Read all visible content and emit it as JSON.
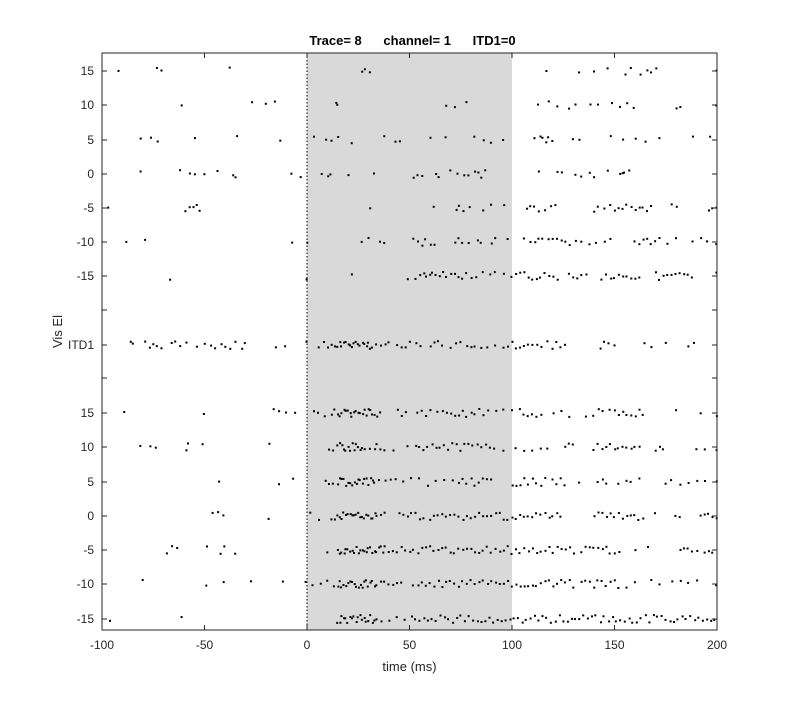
{
  "chart_data": {
    "type": "scatter",
    "title": "Trace= 8      channel= 1      ITD1=0",
    "xlabel": "time (ms)",
    "ylabel": "Vis El",
    "xlim": [
      -100,
      200
    ],
    "xticks": [
      -100,
      -50,
      0,
      50,
      100,
      150,
      200
    ],
    "shaded_region": {
      "x": [
        0,
        100
      ],
      "color": "#d9d9d9"
    },
    "stimulus_onset_line": {
      "x": 0,
      "style": "dotted"
    },
    "grid": false,
    "y_tick_labels_top": [
      "15",
      "10",
      "5",
      "0",
      "-5",
      "-10",
      "-15"
    ],
    "y_tick_label_middle": "ITD1",
    "y_tick_labels_bottom": [
      "15",
      "10",
      "5",
      "0",
      "-5",
      "-10",
      "-15"
    ],
    "rows": [
      {
        "group": "top",
        "label": "15",
        "spikes": [
          -92,
          -73,
          -71,
          -38,
          27,
          28,
          31,
          117,
          133,
          140,
          147,
          155,
          158,
          163,
          166,
          168,
          170,
          200
        ]
      },
      {
        "group": "top",
        "label": "10",
        "spikes": [
          -61,
          -27,
          -20,
          -16,
          14,
          15,
          68,
          72,
          78,
          113,
          118,
          122,
          128,
          131,
          138,
          142,
          149,
          153,
          156,
          159,
          180,
          182,
          200
        ]
      },
      {
        "group": "top",
        "label": "5",
        "spikes": [
          -81,
          -76,
          -73,
          -55,
          -34,
          -13,
          3,
          9,
          12,
          15,
          22,
          38,
          43,
          45,
          60,
          68,
          82,
          86,
          90,
          96,
          111,
          114,
          115,
          117,
          118,
          120,
          130,
          133,
          148,
          154,
          160,
          165,
          172,
          188,
          197
        ]
      },
      {
        "group": "top",
        "label": "0",
        "spikes": [
          -81,
          -62,
          -57,
          -55,
          -50,
          -44,
          -36,
          -35,
          -8,
          -3,
          7,
          10,
          11,
          20,
          33,
          52,
          54,
          56,
          63,
          64,
          70,
          73,
          77,
          79,
          82,
          84,
          85,
          87,
          113,
          122,
          124,
          131,
          134,
          138,
          140,
          147,
          153,
          154,
          155,
          157
        ]
      },
      {
        "group": "top",
        "label": "-5",
        "spikes": [
          -97,
          -59,
          -57,
          -55,
          -54,
          -52,
          31,
          62,
          73,
          74,
          76,
          79,
          86,
          90,
          96,
          107,
          109,
          111,
          113,
          116,
          119,
          121,
          140,
          142,
          145,
          148,
          150,
          152,
          154,
          156,
          158,
          160,
          162,
          164,
          166,
          168,
          178,
          180,
          196,
          198,
          200
        ]
      },
      {
        "group": "top",
        "label": "-10",
        "spikes": [
          -88,
          -79,
          -7,
          0,
          27,
          30,
          36,
          38,
          52,
          54,
          56,
          58,
          60,
          62,
          72,
          74,
          76,
          79,
          83,
          85,
          90,
          92,
          98,
          106,
          109,
          111,
          113,
          115,
          118,
          120,
          122,
          124,
          126,
          128,
          131,
          134,
          138,
          141,
          145,
          148,
          160,
          162,
          164,
          166,
          168,
          170,
          172,
          176,
          180,
          188,
          192,
          195,
          200
        ]
      },
      {
        "group": "top",
        "label": "-15",
        "spikes": [
          -67,
          0,
          22,
          49,
          53,
          55,
          57,
          58,
          60,
          61,
          63,
          65,
          66,
          68,
          70,
          72,
          74,
          76,
          78,
          80,
          83,
          86,
          89,
          92,
          96,
          100,
          102,
          104,
          106,
          108,
          110,
          112,
          114,
          116,
          118,
          120,
          122,
          128,
          130,
          132,
          134,
          136,
          144,
          146,
          148,
          150,
          152,
          154,
          156,
          158,
          160,
          162,
          170,
          172,
          174,
          176,
          178,
          180,
          182,
          184,
          186,
          188,
          200
        ]
      },
      {
        "group": "middle",
        "label": "ITD1",
        "spikes": [
          -86,
          -85,
          -79,
          -77,
          -75,
          -73,
          -71,
          -66,
          -64,
          -62,
          -59,
          -54,
          -50,
          -47,
          -45,
          -42,
          -40,
          -37,
          -35,
          -32,
          -30,
          -15,
          -11,
          0,
          6,
          8,
          10,
          12,
          14,
          15,
          16,
          17,
          18,
          19,
          20,
          21,
          22,
          23,
          24,
          25,
          26,
          27,
          28,
          29,
          30,
          31,
          32,
          34,
          36,
          38,
          40,
          44,
          46,
          48,
          50,
          53,
          55,
          60,
          62,
          64,
          66,
          70,
          73,
          75,
          78,
          80,
          82,
          85,
          88,
          92,
          96,
          98,
          100,
          102,
          104,
          106,
          108,
          110,
          112,
          114,
          117,
          120,
          122,
          124,
          126,
          143,
          145,
          147,
          150,
          165,
          168,
          175,
          186,
          189
        ]
      },
      {
        "group": "bottom",
        "label": "15",
        "spikes": [
          -89,
          -50,
          -16,
          -14,
          -10,
          -6,
          3,
          5,
          9,
          12,
          13,
          15,
          16,
          17,
          18,
          19,
          20,
          21,
          22,
          23,
          24,
          25,
          26,
          27,
          28,
          29,
          30,
          31,
          32,
          33,
          34,
          36,
          44,
          46,
          48,
          54,
          56,
          58,
          60,
          64,
          66,
          68,
          70,
          72,
          74,
          76,
          78,
          80,
          82,
          84,
          86,
          88,
          92,
          96,
          100,
          104,
          106,
          108,
          110,
          112,
          114,
          120,
          124,
          128,
          136,
          140,
          142,
          144,
          148,
          150,
          152,
          154,
          156,
          158,
          160,
          162,
          164,
          180,
          192,
          200
        ]
      },
      {
        "group": "bottom",
        "label": "10",
        "spikes": [
          -81,
          -76,
          -74,
          -59,
          -58,
          -51,
          -18,
          11,
          13,
          15,
          16,
          17,
          18,
          19,
          20,
          21,
          22,
          23,
          24,
          25,
          26,
          27,
          28,
          31,
          33,
          34,
          36,
          38,
          42,
          49,
          53,
          55,
          57,
          59,
          61,
          63,
          65,
          67,
          69,
          71,
          73,
          75,
          77,
          79,
          81,
          83,
          85,
          87,
          89,
          91,
          96,
          102,
          106,
          110,
          114,
          117,
          126,
          128,
          130,
          140,
          142,
          144,
          146,
          148,
          150,
          152,
          154,
          156,
          158,
          160,
          162,
          170,
          172,
          174,
          190,
          194,
          200
        ]
      },
      {
        "group": "bottom",
        "label": "5",
        "spikes": [
          -43,
          -14,
          -7,
          9,
          11,
          13,
          15,
          16,
          17,
          18,
          19,
          20,
          21,
          22,
          23,
          24,
          25,
          26,
          27,
          28,
          29,
          30,
          31,
          32,
          33,
          35,
          38,
          41,
          43,
          47,
          51,
          55,
          59,
          63,
          67,
          71,
          74,
          76,
          78,
          80,
          82,
          84,
          86,
          88,
          90,
          100,
          102,
          104,
          106,
          108,
          110,
          112,
          114,
          116,
          120,
          122,
          124,
          126,
          133,
          142,
          144,
          146,
          152,
          156,
          158,
          162,
          175,
          178,
          182,
          186,
          190,
          194,
          200
        ]
      },
      {
        "group": "bottom",
        "label": "0",
        "spikes": [
          -46,
          -43,
          -41,
          -19,
          2,
          6,
          12,
          14,
          15,
          16,
          17,
          18,
          19,
          20,
          21,
          22,
          23,
          24,
          25,
          26,
          27,
          28,
          29,
          30,
          31,
          32,
          33,
          34,
          36,
          38,
          45,
          47,
          49,
          51,
          53,
          55,
          57,
          60,
          62,
          64,
          66,
          68,
          70,
          72,
          74,
          76,
          78,
          80,
          82,
          84,
          86,
          88,
          90,
          92,
          94,
          96,
          98,
          100,
          102,
          104,
          106,
          108,
          110,
          112,
          114,
          116,
          118,
          120,
          122,
          124,
          140,
          142,
          144,
          146,
          148,
          150,
          152,
          154,
          156,
          158,
          160,
          162,
          164,
          170,
          180,
          182,
          192,
          194,
          196,
          198,
          200
        ]
      },
      {
        "group": "bottom",
        "label": "-5",
        "spikes": [
          -68,
          -66,
          -63,
          -49,
          -42,
          -40,
          -35,
          10,
          15,
          16,
          17,
          18,
          19,
          20,
          21,
          22,
          23,
          24,
          25,
          26,
          27,
          28,
          29,
          30,
          31,
          32,
          33,
          34,
          35,
          36,
          37,
          38,
          40,
          42,
          44,
          46,
          48,
          50,
          52,
          54,
          56,
          58,
          60,
          62,
          64,
          66,
          68,
          70,
          72,
          74,
          76,
          78,
          80,
          82,
          84,
          86,
          88,
          90,
          92,
          94,
          96,
          98,
          100,
          102,
          104,
          106,
          108,
          110,
          112,
          114,
          116,
          118,
          120,
          122,
          124,
          126,
          128,
          130,
          134,
          136,
          138,
          140,
          142,
          144,
          146,
          148,
          150,
          152,
          160,
          166,
          182,
          184,
          186,
          188,
          190,
          194,
          196,
          198
        ]
      },
      {
        "group": "bottom",
        "label": "-10",
        "spikes": [
          -80,
          -49,
          -41,
          -27,
          -12,
          -1,
          3,
          7,
          10,
          13,
          15,
          16,
          17,
          18,
          19,
          20,
          21,
          22,
          23,
          24,
          25,
          26,
          27,
          28,
          29,
          30,
          31,
          32,
          33,
          34,
          36,
          38,
          40,
          42,
          44,
          46,
          52,
          54,
          56,
          58,
          60,
          62,
          64,
          66,
          68,
          70,
          72,
          74,
          76,
          78,
          80,
          82,
          84,
          86,
          88,
          90,
          92,
          94,
          96,
          98,
          100,
          102,
          104,
          106,
          108,
          110,
          112,
          114,
          116,
          118,
          120,
          122,
          124,
          126,
          128,
          130,
          134,
          136,
          138,
          140,
          142,
          144,
          146,
          148,
          150,
          152,
          156,
          160,
          168,
          172,
          178,
          182,
          186,
          190,
          200
        ]
      },
      {
        "group": "bottom",
        "label": "-15",
        "spikes": [
          -96,
          -61,
          15,
          16,
          17,
          18,
          19,
          20,
          21,
          22,
          23,
          24,
          25,
          26,
          27,
          28,
          29,
          30,
          31,
          32,
          33,
          34,
          36,
          40,
          44,
          48,
          51,
          53,
          55,
          57,
          59,
          61,
          63,
          65,
          67,
          69,
          71,
          73,
          75,
          77,
          79,
          81,
          83,
          85,
          87,
          89,
          91,
          93,
          95,
          97,
          99,
          101,
          103,
          105,
          107,
          109,
          111,
          113,
          115,
          117,
          119,
          121,
          123,
          125,
          127,
          129,
          131,
          133,
          135,
          137,
          139,
          141,
          143,
          145,
          147,
          149,
          151,
          153,
          155,
          157,
          159,
          161,
          163,
          165,
          167,
          169,
          171,
          173,
          175,
          177,
          179,
          181,
          183,
          185,
          187,
          189,
          191,
          193,
          195,
          197,
          199
        ]
      }
    ]
  }
}
